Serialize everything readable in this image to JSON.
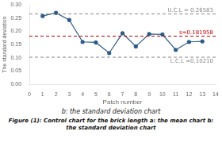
{
  "chart_data": {
    "type": "line",
    "subtitle": "b: the standard deviation chart",
    "caption": "Figure (1): Control chart for the brick length a: the mean chart b: the standard deviation chart",
    "xlabel": "Patch number",
    "ylabel": "The standard deviation",
    "x": [
      1,
      2,
      3,
      4,
      5,
      6,
      7,
      8,
      9,
      10,
      11,
      12,
      13
    ],
    "values": [
      0.258,
      0.27,
      0.243,
      0.16,
      0.158,
      0.118,
      0.193,
      0.143,
      0.19,
      0.188,
      0.13,
      0.16,
      0.162
    ],
    "color": "#2e5c8a",
    "marker": "circle",
    "reference_lines": [
      {
        "value": 0.26583,
        "label": "U.C.L = 0.26583",
        "color": "#888888",
        "line_style": "dashed"
      },
      {
        "value": 0.181958,
        "label": "s=0.181958",
        "color": "#c00000",
        "line_style": "dashed"
      },
      {
        "value": 0.1021,
        "label": "L.C.L =0.10210",
        "color": "#888888",
        "line_style": "dashed"
      }
    ],
    "xlim": [
      0,
      14
    ],
    "xticks": [
      0,
      1,
      2,
      3,
      4,
      5,
      6,
      7,
      8,
      9,
      10,
      11,
      12,
      13,
      14
    ],
    "ylim": [
      0,
      0.3
    ],
    "yticks": [
      {
        "value": 0,
        "label": "0.00"
      },
      0.05,
      {
        "value": 0.1,
        "label": "0.10"
      },
      0.15,
      {
        "value": 0.2,
        "label": "0.20"
      },
      0.25,
      {
        "value": 0.3,
        "label": "0.30"
      }
    ],
    "grid": false
  }
}
